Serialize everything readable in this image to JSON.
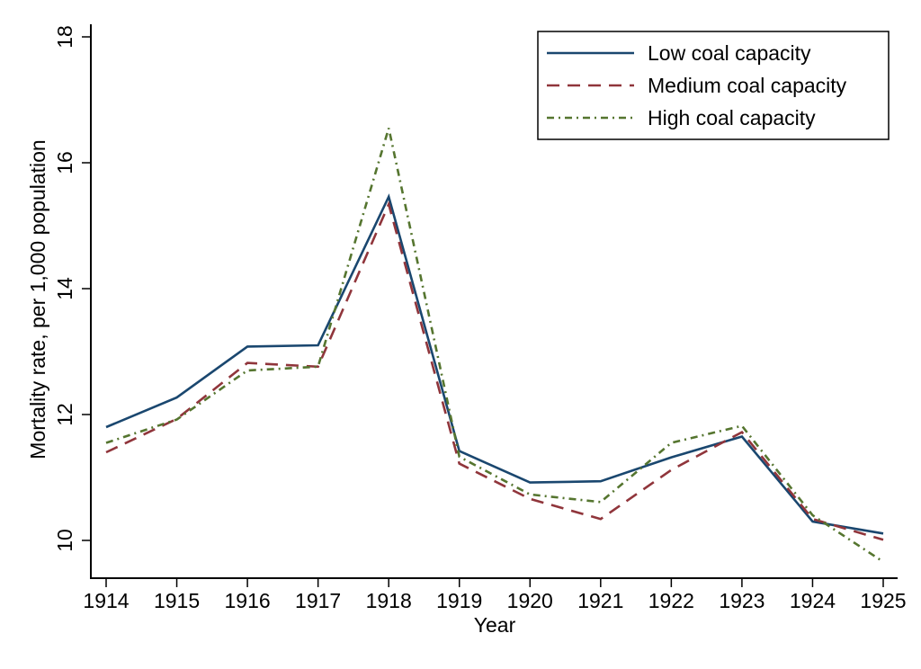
{
  "chart_data": {
    "type": "line",
    "title": "",
    "xlabel": "Year",
    "ylabel": "Mortality rate, per 1,000 population",
    "x": [
      1914,
      1915,
      1916,
      1917,
      1918,
      1919,
      1920,
      1921,
      1922,
      1923,
      1924,
      1925
    ],
    "x_tick_labels": [
      "1914",
      "1915",
      "1916",
      "1917",
      "1918",
      "1919",
      "1920",
      "1921",
      "1922",
      "1923",
      "1924",
      "1925"
    ],
    "y_ticks": [
      10,
      12,
      14,
      16,
      18
    ],
    "y_tick_labels": [
      "10",
      "12",
      "14",
      "16",
      "18"
    ],
    "ylim": [
      9.4,
      18.3
    ],
    "xlim": [
      1913.8,
      1925.2
    ],
    "grid": false,
    "legend_position": "top-right",
    "series": [
      {
        "name": "Low coal capacity",
        "color": "#1a476f",
        "style": "solid",
        "values": [
          11.8,
          12.27,
          13.08,
          13.1,
          15.46,
          11.42,
          10.92,
          10.94,
          11.32,
          11.65,
          10.3,
          10.11
        ]
      },
      {
        "name": "Medium coal capacity",
        "color": "#90353b",
        "style": "dashed",
        "values": [
          11.4,
          11.93,
          12.82,
          12.76,
          15.34,
          11.22,
          10.66,
          10.34,
          11.12,
          11.72,
          10.34,
          10.01
        ]
      },
      {
        "name": "High coal capacity",
        "color": "#55752f",
        "style": "dash-dot",
        "values": [
          11.55,
          11.92,
          12.7,
          12.76,
          16.55,
          11.33,
          10.73,
          10.61,
          11.55,
          11.82,
          10.4,
          9.66
        ]
      }
    ]
  }
}
